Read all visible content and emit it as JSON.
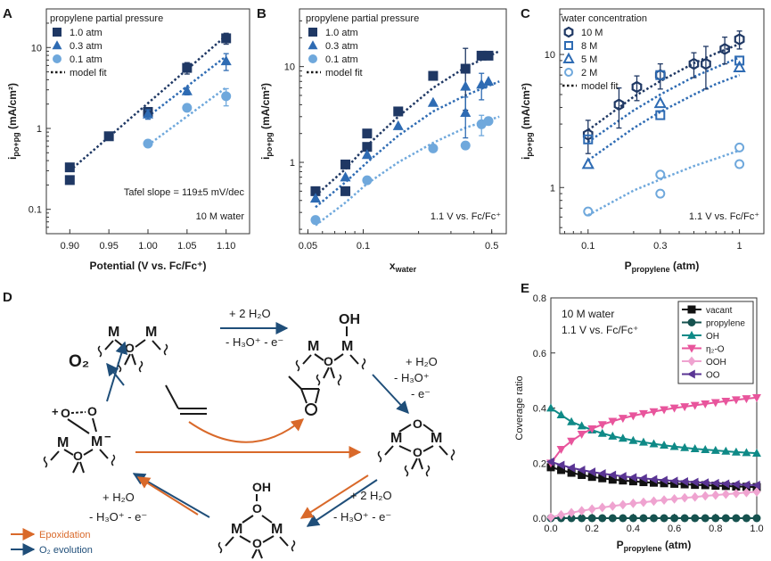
{
  "colors": {
    "dark": "#1f3864",
    "mid": "#2e6bb3",
    "light": "#6fa8dc",
    "orange": "#d9692a",
    "teal": "#0f8a87",
    "pink": "#e8559c",
    "lightpink": "#efa3d0",
    "purple": "#5a3594",
    "tealdark": "#16524f"
  },
  "panel_letters": [
    "A",
    "B",
    "C",
    "D",
    "E"
  ],
  "chart_data": [
    {
      "id": "A",
      "type": "scatter",
      "xscale": "linear",
      "yscale": "log",
      "xlim": [
        0.87,
        1.13
      ],
      "ylim": [
        0.05,
        30
      ],
      "xticks": [
        0.9,
        0.95,
        1.0,
        1.05,
        1.1
      ],
      "xtick_labels": [
        "0.90",
        "0.95",
        "1.00",
        "1.05",
        "1.10"
      ],
      "yticks": [
        0.1,
        1,
        10
      ],
      "ytick_labels": [
        "0.1",
        "1",
        "10"
      ],
      "xlabel": "Potential (V vs. Fc/Fc⁺)",
      "ylabel": "i",
      "ylabel_sub": "po+pg",
      "ylabel_unit": "(mA/cm²)",
      "legend_title": "propylene partial pressure",
      "annotations": [
        "Tafel slope = 119±5 mV/dec",
        "10 M water"
      ],
      "series": [
        {
          "name": "1.0 atm",
          "marker": "square",
          "color": "dark",
          "points": [
            [
              0.9,
              0.33,
              0
            ],
            [
              0.9,
              0.23,
              0
            ],
            [
              0.95,
              0.8,
              0
            ],
            [
              1.0,
              1.6,
              0.15
            ],
            [
              1.05,
              5.6,
              0.9
            ],
            [
              1.1,
              13,
              2
            ]
          ],
          "fit": [
            [
              0.9,
              0.3
            ],
            [
              1.1,
              14
            ]
          ]
        },
        {
          "name": "0.3 atm",
          "marker": "triangle",
          "color": "mid",
          "points": [
            [
              1.0,
              1.5,
              0.2
            ],
            [
              1.05,
              2.9,
              0.3
            ],
            [
              1.1,
              6.8,
              1.6
            ]
          ],
          "fit": [
            [
              1.0,
              1.4
            ],
            [
              1.1,
              7.8
            ]
          ]
        },
        {
          "name": "0.1 atm",
          "marker": "circle",
          "color": "light",
          "points": [
            [
              1.0,
              0.65,
              0
            ],
            [
              1.05,
              1.8,
              0
            ],
            [
              1.1,
              2.5,
              0.6
            ]
          ],
          "fit": [
            [
              1.0,
              0.62
            ],
            [
              1.1,
              3.2
            ]
          ]
        }
      ],
      "fit_label": "model fit"
    },
    {
      "id": "B",
      "type": "scatter",
      "xscale": "log",
      "yscale": "log",
      "xlim": [
        0.045,
        0.6
      ],
      "ylim": [
        0.18,
        40
      ],
      "xticks": [
        0.05,
        0.1,
        0.5
      ],
      "xtick_labels": [
        "0.05",
        "0.1",
        "0.5"
      ],
      "yticks": [
        1,
        10
      ],
      "ytick_labels": [
        "1",
        "10"
      ],
      "xlabel": "x",
      "xlabel_sub": "water",
      "ylabel": "i",
      "ylabel_sub": "po+pg",
      "ylabel_unit": "(mA/cm²)",
      "legend_title": "propylene partial pressure",
      "annotations": [
        "1.1 V vs. Fc/Fc⁺"
      ],
      "series": [
        {
          "name": "1.0 atm",
          "marker": "square",
          "color": "dark",
          "points": [
            [
              0.055,
              0.5,
              0
            ],
            [
              0.08,
              0.95,
              0
            ],
            [
              0.08,
              0.5,
              0
            ],
            [
              0.105,
              2.0,
              0
            ],
            [
              0.105,
              1.45,
              0
            ],
            [
              0.155,
              3.4,
              0
            ],
            [
              0.24,
              8.0,
              0
            ],
            [
              0.36,
              9.5,
              6
            ],
            [
              0.44,
              13,
              1.2
            ],
            [
              0.48,
              13,
              0
            ]
          ],
          "fit": [
            [
              0.055,
              0.45
            ],
            [
              0.08,
              0.85
            ],
            [
              0.105,
              1.5
            ],
            [
              0.155,
              3.0
            ],
            [
              0.24,
              6.0
            ],
            [
              0.36,
              9.8
            ],
            [
              0.55,
              14.5
            ]
          ]
        },
        {
          "name": "0.3 atm",
          "marker": "triangle",
          "color": "mid",
          "points": [
            [
              0.055,
              0.42,
              0
            ],
            [
              0.08,
              0.7,
              0
            ],
            [
              0.105,
              1.2,
              0
            ],
            [
              0.155,
              2.4,
              0
            ],
            [
              0.24,
              4.2,
              0
            ],
            [
              0.36,
              6.2,
              0
            ],
            [
              0.36,
              3.3,
              1.5
            ],
            [
              0.44,
              6.5,
              2
            ],
            [
              0.48,
              7.0,
              0
            ]
          ],
          "fit": [
            [
              0.055,
              0.34
            ],
            [
              0.08,
              0.62
            ],
            [
              0.105,
              1.0
            ],
            [
              0.155,
              1.9
            ],
            [
              0.24,
              3.4
            ],
            [
              0.36,
              5.0
            ],
            [
              0.55,
              7.0
            ]
          ]
        },
        {
          "name": "0.1 atm",
          "marker": "circle",
          "color": "light",
          "points": [
            [
              0.055,
              0.25,
              0
            ],
            [
              0.105,
              0.65,
              0
            ],
            [
              0.24,
              1.4,
              0
            ],
            [
              0.36,
              1.5,
              0
            ],
            [
              0.44,
              2.5,
              0.6
            ],
            [
              0.48,
              2.7,
              0
            ]
          ],
          "fit": [
            [
              0.055,
              0.22
            ],
            [
              0.08,
              0.38
            ],
            [
              0.105,
              0.6
            ],
            [
              0.155,
              1.0
            ],
            [
              0.24,
              1.6
            ],
            [
              0.36,
              2.3
            ],
            [
              0.55,
              3.0
            ]
          ]
        }
      ],
      "fit_label": "model fit"
    },
    {
      "id": "C",
      "type": "scatter",
      "xscale": "log",
      "yscale": "log",
      "xlim": [
        0.065,
        1.45
      ],
      "ylim": [
        0.45,
        22
      ],
      "xticks": [
        0.1,
        0.3,
        1
      ],
      "xtick_labels": [
        "0.1",
        "0.3",
        "1"
      ],
      "yticks": [
        1,
        10
      ],
      "ytick_labels": [
        "1",
        "10"
      ],
      "xlabel": "P",
      "xlabel_sub": "propylene",
      "xlabel_unit": "(atm)",
      "ylabel": "i",
      "ylabel_sub": "po+pg",
      "ylabel_unit": "(mA/cm²)",
      "legend_title": "water concentration",
      "annotations": [
        "1.1 V vs. Fc/Fc⁺"
      ],
      "series": [
        {
          "name": "10 M",
          "marker": "hexagon",
          "color": "dark",
          "points": [
            [
              0.1,
              2.5,
              0.7
            ],
            [
              0.16,
              4.2,
              1.4
            ],
            [
              0.21,
              5.7,
              1.2
            ],
            [
              0.3,
              7.0,
              1.5
            ],
            [
              0.5,
              8.5,
              1.8
            ],
            [
              0.6,
              8.5,
              3
            ],
            [
              0.8,
              11,
              2.5
            ],
            [
              1.0,
              13,
              2
            ]
          ],
          "fit": [
            [
              0.1,
              2.7
            ],
            [
              0.2,
              4.8
            ],
            [
              0.3,
              6.3
            ],
            [
              0.5,
              8.6
            ],
            [
              0.7,
              10.2
            ],
            [
              1.0,
              12
            ]
          ]
        },
        {
          "name": "8 M",
          "marker": "square-open",
          "color": "mid",
          "points": [
            [
              0.1,
              2.3,
              0
            ],
            [
              0.3,
              3.5,
              0
            ],
            [
              0.3,
              7.0,
              0
            ],
            [
              1.0,
              9.0,
              0
            ]
          ],
          "fit": [
            [
              0.1,
              2.2
            ],
            [
              0.2,
              3.8
            ],
            [
              0.3,
              5.0
            ],
            [
              0.5,
              6.8
            ],
            [
              0.7,
              8.0
            ],
            [
              1.0,
              9.5
            ]
          ]
        },
        {
          "name": "5 M",
          "marker": "triangle-open",
          "color": "mid",
          "points": [
            [
              0.1,
              1.5,
              0
            ],
            [
              0.3,
              4.3,
              0
            ],
            [
              1.0,
              8.0,
              0
            ]
          ],
          "fit": [
            [
              0.1,
              1.6
            ],
            [
              0.2,
              2.8
            ],
            [
              0.3,
              3.7
            ],
            [
              0.5,
              5.0
            ],
            [
              0.7,
              6.0
            ],
            [
              1.0,
              7.0
            ]
          ]
        },
        {
          "name": "2 M",
          "marker": "circle-open",
          "color": "light",
          "points": [
            [
              0.1,
              0.66,
              0
            ],
            [
              0.3,
              0.9,
              0
            ],
            [
              0.3,
              1.25,
              0
            ],
            [
              1.0,
              1.5,
              0
            ],
            [
              1.0,
              2.0,
              0
            ]
          ],
          "fit": [
            [
              0.1,
              0.62
            ],
            [
              0.2,
              0.95
            ],
            [
              0.3,
              1.15
            ],
            [
              0.5,
              1.45
            ],
            [
              0.7,
              1.65
            ],
            [
              1.0,
              1.9
            ]
          ]
        }
      ],
      "fit_label": "model fit"
    },
    {
      "id": "E",
      "type": "line",
      "xscale": "linear",
      "yscale": "linear",
      "xlim": [
        0,
        1.0
      ],
      "ylim": [
        0,
        0.8
      ],
      "xticks": [
        0,
        0.2,
        0.4,
        0.6,
        0.8,
        1.0
      ],
      "xtick_labels": [
        "0.0",
        "0.2",
        "0.4",
        "0.6",
        "0.8",
        "1.0"
      ],
      "yticks": [
        0,
        0.2,
        0.4,
        0.6,
        0.8
      ],
      "ytick_labels": [
        "0.0",
        "0.2",
        "0.4",
        "0.6",
        "0.8"
      ],
      "xlabel": "P",
      "xlabel_sub": "propylene",
      "xlabel_unit": "(atm)",
      "ylabel": "Coverage ratio",
      "annotations": [
        "10 M water",
        "1.1 V vs. Fc/Fc⁺"
      ],
      "x": [
        0.0,
        0.05,
        0.1,
        0.15,
        0.2,
        0.25,
        0.3,
        0.35,
        0.4,
        0.45,
        0.5,
        0.55,
        0.6,
        0.65,
        0.7,
        0.75,
        0.8,
        0.85,
        0.9,
        0.95,
        1.0
      ],
      "series": [
        {
          "name": "vacant",
          "marker": "square",
          "color": "#111111",
          "values": [
            0.185,
            0.175,
            0.165,
            0.157,
            0.15,
            0.145,
            0.14,
            0.137,
            0.134,
            0.131,
            0.129,
            0.127,
            0.125,
            0.123,
            0.121,
            0.12,
            0.118,
            0.117,
            0.115,
            0.114,
            0.113
          ]
        },
        {
          "name": "propylene",
          "marker": "circle",
          "color": "tealdark",
          "values": [
            0,
            0,
            0,
            0,
            0,
            0,
            0,
            0,
            0,
            0,
            0,
            0,
            0,
            0,
            0,
            0,
            0,
            0,
            0,
            0,
            0
          ]
        },
        {
          "name": "OH",
          "marker": "triangle",
          "color": "teal",
          "values": [
            0.4,
            0.375,
            0.35,
            0.335,
            0.32,
            0.308,
            0.298,
            0.29,
            0.282,
            0.276,
            0.27,
            0.265,
            0.26,
            0.256,
            0.252,
            0.249,
            0.246,
            0.243,
            0.24,
            0.238,
            0.236
          ]
        },
        {
          "name": "η₂-O",
          "marker": "triangle-down",
          "color": "pink",
          "values": [
            0.2,
            0.25,
            0.28,
            0.305,
            0.325,
            0.34,
            0.352,
            0.363,
            0.372,
            0.38,
            0.387,
            0.394,
            0.4,
            0.405,
            0.41,
            0.415,
            0.42,
            0.425,
            0.43,
            0.434,
            0.438
          ]
        },
        {
          "name": "OOH",
          "marker": "diamond",
          "color": "lightpink",
          "values": [
            0.003,
            0.012,
            0.02,
            0.027,
            0.033,
            0.039,
            0.044,
            0.049,
            0.054,
            0.058,
            0.062,
            0.066,
            0.07,
            0.074,
            0.077,
            0.081,
            0.084,
            0.087,
            0.09,
            0.093,
            0.096
          ]
        },
        {
          "name": "OO",
          "marker": "triangle-left",
          "color": "purple",
          "values": [
            0.205,
            0.193,
            0.183,
            0.175,
            0.168,
            0.162,
            0.157,
            0.152,
            0.148,
            0.145,
            0.141,
            0.138,
            0.135,
            0.133,
            0.131,
            0.129,
            0.127,
            0.125,
            0.123,
            0.121,
            0.12
          ]
        }
      ]
    }
  ],
  "scheme": {
    "legend": {
      "epox": "Epoxidation",
      "o2": "O₂ evolution"
    },
    "rxn": {
      "top": "+ 2 H₂O",
      "top2": "- H₃O⁺ - e⁻",
      "right1": "+ H₂O",
      "right2": "- H₃O⁺",
      "right3": "- e⁻",
      "botright1": "+ 2 H₂O",
      "botright2": "- H₃O⁺ - e⁻",
      "botleft1": "+ H₂O",
      "botleft2": "- H₃O⁺ - e⁻",
      "o2": "O₂"
    },
    "atoms": {
      "M": "M",
      "O": "O",
      "OH": "OH",
      "OOH_O": "O",
      "OOH_H": "OH",
      "plus": "+",
      "minus": "−"
    }
  }
}
